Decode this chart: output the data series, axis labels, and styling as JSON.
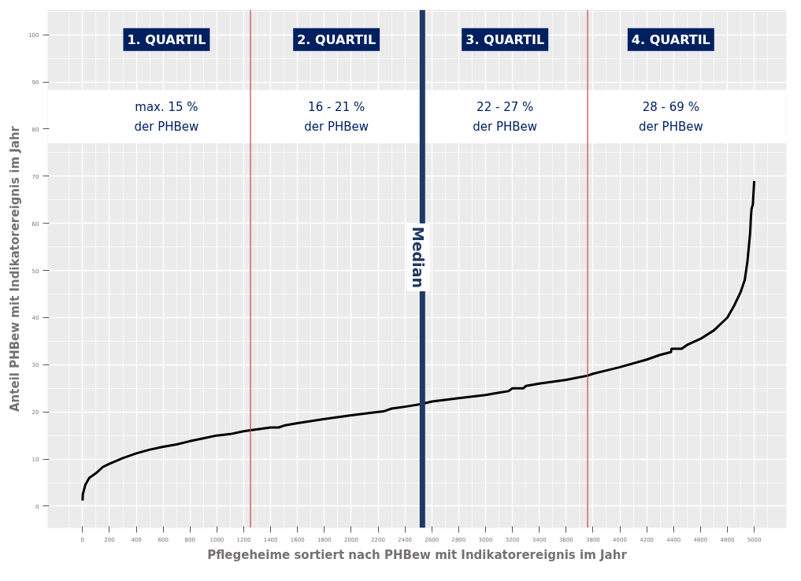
{
  "chart_data": {
    "type": "line",
    "xlabel": "Pflegeheime sortiert nach PHBew mit Indikatorereignis im Jahr",
    "ylabel": "Anteil PHBew mit Indikatorereignis im Jahr",
    "xlim": [
      -260,
      5240
    ],
    "ylim": [
      -4.6,
      105.3
    ],
    "xticks": [
      0,
      200,
      400,
      600,
      800,
      1000,
      1200,
      1400,
      1600,
      1800,
      2000,
      2200,
      2400,
      2600,
      2800,
      3000,
      3200,
      3400,
      3600,
      3800,
      4000,
      4200,
      4400,
      4600,
      4800,
      5000
    ],
    "yticks": [
      0,
      10,
      20,
      30,
      40,
      50,
      60,
      70,
      80,
      90,
      100
    ],
    "grid": true,
    "marker": "none",
    "line_style": "solid",
    "series": [
      {
        "color": "#000000",
        "x": [
          0,
          2,
          20,
          50,
          100,
          150,
          200,
          300,
          400,
          500,
          600,
          700,
          800,
          900,
          1000,
          1100,
          1200,
          1250,
          1400,
          1460,
          1500,
          1600,
          1800,
          2000,
          2200,
          2240,
          2300,
          2400,
          2530,
          2600,
          2800,
          3000,
          3100,
          3170,
          3200,
          3280,
          3300,
          3400,
          3600,
          3760,
          3800,
          4000,
          4200,
          4300,
          4380,
          4385,
          4460,
          4500,
          4600,
          4700,
          4800,
          4850,
          4900,
          4930,
          4950,
          4960,
          4970,
          4975,
          4980,
          4990,
          5000
        ],
        "values": [
          1.2,
          2.5,
          4.5,
          6,
          7,
          8.3,
          9,
          10.2,
          11.2,
          12,
          12.6,
          13.1,
          13.8,
          14.4,
          15,
          15.3,
          15.9,
          16.1,
          16.7,
          16.7,
          17.1,
          17.6,
          18.5,
          19.3,
          20,
          20.1,
          20.7,
          21.1,
          21.7,
          22.2,
          22.9,
          23.6,
          24.1,
          24.4,
          25,
          25,
          25.5,
          26,
          26.8,
          27.7,
          28.1,
          29.5,
          31.1,
          32.1,
          32.7,
          33.4,
          33.4,
          34.2,
          35.5,
          37.3,
          40,
          42.5,
          45.5,
          48,
          52,
          55,
          58,
          61,
          63,
          64,
          69
        ]
      }
    ],
    "ref_lines": [
      {
        "axis": "x",
        "value": 1250,
        "color": "#d04040"
      },
      {
        "axis": "x",
        "value": 2530,
        "label": "Median",
        "color": "#1f3864"
      },
      {
        "axis": "x",
        "value": 3760,
        "color": "#d04040"
      }
    ],
    "bands": [
      {
        "axis": "y",
        "from": 77,
        "to": 88.3,
        "color": "#ffffff"
      }
    ],
    "annotations": [
      "1. QUARTIL",
      "2. QUARTIL",
      "3. QUARTIL",
      "4. QUARTIL",
      "max. 15 %\nder PHBew",
      "16 - 21 %\nder PHBew",
      "22 - 27 %\nder PHBew",
      "28 - 69 %\nder PHBew"
    ]
  }
}
